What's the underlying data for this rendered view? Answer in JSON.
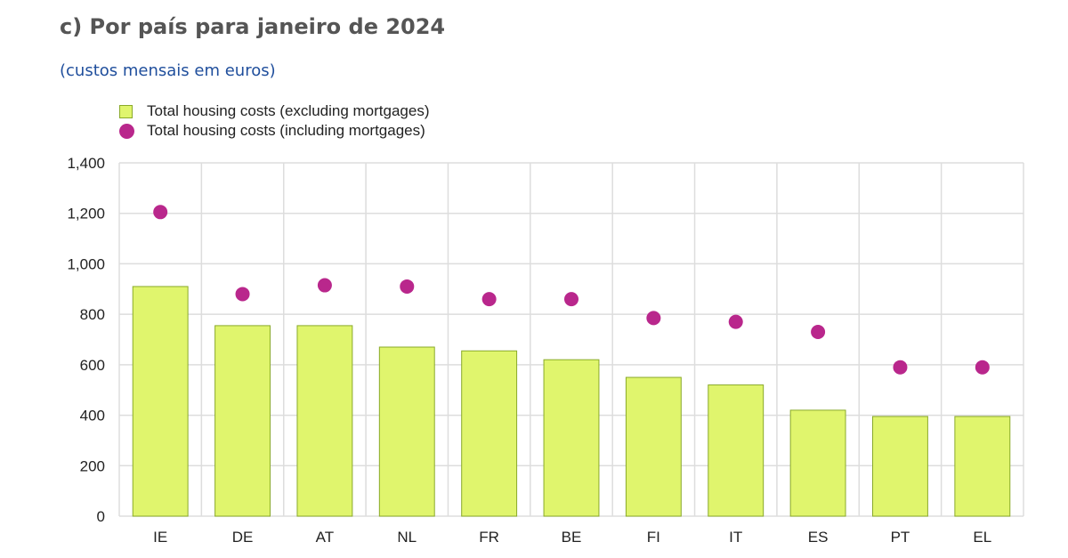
{
  "title": "c) Por país para janeiro de 2024",
  "subtitle": "(custos mensais em euros)",
  "colors": {
    "bar_fill": "#e0f56d",
    "bar_stroke": "#8aaa2a",
    "dot": "#b9278c",
    "grid": "#dddddd"
  },
  "chart_data": {
    "type": "bar",
    "categories": [
      "IE",
      "DE",
      "AT",
      "NL",
      "FR",
      "BE",
      "FI",
      "IT",
      "ES",
      "PT",
      "EL"
    ],
    "series": [
      {
        "name": "Total housing costs (excluding mortgages)",
        "type": "bar",
        "values": [
          910,
          755,
          755,
          670,
          655,
          620,
          550,
          520,
          420,
          395,
          395
        ]
      },
      {
        "name": "Total housing costs (including mortgages)",
        "type": "scatter",
        "values": [
          1205,
          880,
          915,
          910,
          860,
          860,
          785,
          770,
          730,
          590,
          590
        ]
      }
    ],
    "ylim": [
      0,
      1400
    ],
    "yticks": [
      0,
      200,
      400,
      600,
      800,
      1000,
      1200,
      1400
    ],
    "ytick_labels": [
      "0",
      "200",
      "400",
      "600",
      "800",
      "1,000",
      "1,200",
      "1,400"
    ],
    "grid": true,
    "legend_position": "top-left"
  }
}
